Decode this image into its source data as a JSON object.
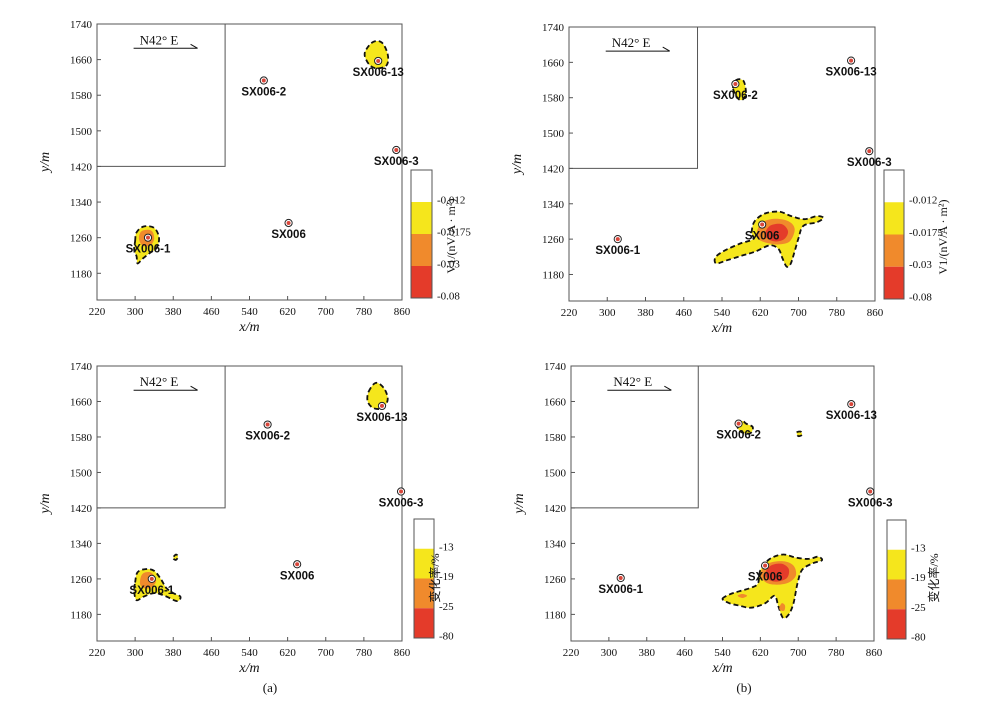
{
  "colors": {
    "level_1": "#ffffff",
    "level_2": "#f5e61c",
    "level_3": "#f08a2c",
    "level_4": "#e43b2a",
    "frame": "#555555",
    "outline": "#111111"
  },
  "chart_data": [
    {
      "id": "a-top",
      "type": "contour",
      "xlabel": "x/m",
      "ylabel": "y/m",
      "xlim": [
        220,
        860
      ],
      "ylim": [
        1120,
        1740
      ],
      "xticks": [
        "220",
        "300",
        "380",
        "460",
        "540",
        "620",
        "700",
        "780",
        "860"
      ],
      "yticks": [
        "1180",
        "1260",
        "1340",
        "1420",
        "1500",
        "1580",
        "1660",
        "1740"
      ],
      "direction": "N42° E",
      "colorbar": {
        "title": "V1/(nV/A · m²)",
        "labels": [
          "-0.012",
          "-0.0175",
          "-0.03",
          "-0.08"
        ]
      },
      "wells": [
        {
          "name": "SX006-2",
          "x": 570,
          "y": 1613
        },
        {
          "name": "SX006-13",
          "x": 810,
          "y": 1657
        },
        {
          "name": "SX006-3",
          "x": 848,
          "y": 1457
        },
        {
          "name": "SX006",
          "x": 622,
          "y": 1293
        },
        {
          "name": "SX006-1",
          "x": 327,
          "y": 1260
        }
      ],
      "anomalies": [
        {
          "level": 2,
          "points": [
            [
              785,
              1683
            ],
            [
              800,
              1700
            ],
            [
              818,
              1698
            ],
            [
              830,
              1672
            ],
            [
              828,
              1648
            ],
            [
              808,
              1640
            ],
            [
              792,
              1648
            ],
            [
              782,
              1668
            ]
          ]
        },
        {
          "level": 2,
          "points": [
            [
              300,
              1252
            ],
            [
              303,
              1272
            ],
            [
              318,
              1285
            ],
            [
              340,
              1282
            ],
            [
              350,
              1260
            ],
            [
              345,
              1237
            ],
            [
              330,
              1225
            ],
            [
              315,
              1212
            ],
            [
              305,
              1202
            ],
            [
              303,
              1218
            ],
            [
              298,
              1232
            ]
          ]
        },
        {
          "level": 3,
          "points": [
            [
              308,
              1258
            ],
            [
              314,
              1275
            ],
            [
              334,
              1276
            ],
            [
              340,
              1258
            ],
            [
              332,
              1243
            ],
            [
              316,
              1242
            ]
          ]
        }
      ]
    },
    {
      "id": "b-top",
      "type": "contour",
      "xlabel": "x/m",
      "ylabel": "y/m",
      "xlim": [
        220,
        860
      ],
      "ylim": [
        1120,
        1740
      ],
      "xticks": [
        "220",
        "300",
        "380",
        "460",
        "540",
        "620",
        "700",
        "780",
        "860"
      ],
      "yticks": [
        "1180",
        "1260",
        "1340",
        "1420",
        "1500",
        "1580",
        "1660",
        "1740"
      ],
      "direction": "N42° E",
      "colorbar": {
        "title": "V1/(nV/A · m²)",
        "labels": [
          "-0.012",
          "-0.0175",
          "-0.03",
          "-0.08"
        ]
      },
      "wells": [
        {
          "name": "SX006-2",
          "x": 568,
          "y": 1611
        },
        {
          "name": "SX006-13",
          "x": 810,
          "y": 1664
        },
        {
          "name": "SX006-3",
          "x": 848,
          "y": 1459
        },
        {
          "name": "SX006",
          "x": 624,
          "y": 1293
        },
        {
          "name": "SX006-1",
          "x": 322,
          "y": 1260
        }
      ],
      "anomalies": [
        {
          "level": 2,
          "points": [
            [
              563,
              1602
            ],
            [
              570,
              1620
            ],
            [
              585,
              1618
            ],
            [
              590,
              1590
            ],
            [
              582,
              1575
            ],
            [
              572,
              1580
            ]
          ]
        },
        {
          "level": 2,
          "points": [
            [
              602,
              1275
            ],
            [
              608,
              1300
            ],
            [
              630,
              1318
            ],
            [
              660,
              1322
            ],
            [
              685,
              1312
            ],
            [
              712,
              1305
            ],
            [
              738,
              1312
            ],
            [
              752,
              1308
            ],
            [
              738,
              1298
            ],
            [
              710,
              1290
            ],
            [
              700,
              1262
            ],
            [
              690,
              1225
            ],
            [
              683,
              1203
            ],
            [
              675,
              1198
            ],
            [
              666,
              1218
            ],
            [
              658,
              1238
            ],
            [
              640,
              1246
            ],
            [
              610,
              1232
            ],
            [
              580,
              1222
            ],
            [
              550,
              1212
            ],
            [
              528,
              1205
            ],
            [
              526,
              1218
            ],
            [
              542,
              1232
            ],
            [
              578,
              1250
            ],
            [
              605,
              1260
            ]
          ]
        },
        {
          "level": 3,
          "points": [
            [
              612,
              1270
            ],
            [
              622,
              1296
            ],
            [
              650,
              1306
            ],
            [
              680,
              1300
            ],
            [
              692,
              1282
            ],
            [
              682,
              1255
            ],
            [
              660,
              1248
            ],
            [
              640,
              1250
            ],
            [
              620,
              1257
            ]
          ]
        },
        {
          "level": 4,
          "points": [
            [
              630,
              1268
            ],
            [
              640,
              1290
            ],
            [
              665,
              1294
            ],
            [
              678,
              1278
            ],
            [
              670,
              1260
            ],
            [
              648,
              1255
            ]
          ]
        }
      ]
    },
    {
      "id": "a-bottom",
      "type": "contour",
      "xlabel": "x/m",
      "ylabel": "y/m",
      "xlim": [
        220,
        860
      ],
      "ylim": [
        1120,
        1740
      ],
      "xticks": [
        "220",
        "300",
        "380",
        "460",
        "540",
        "620",
        "700",
        "780",
        "860"
      ],
      "yticks": [
        "1180",
        "1260",
        "1340",
        "1420",
        "1500",
        "1580",
        "1660",
        "1740"
      ],
      "direction": "N42° E",
      "colorbar": {
        "title": "变化率/%",
        "labels": [
          "-13",
          "-19",
          "-25",
          "-80"
        ]
      },
      "wells": [
        {
          "name": "SX006-2",
          "x": 578,
          "y": 1608
        },
        {
          "name": "SX006-13",
          "x": 818,
          "y": 1650
        },
        {
          "name": "SX006-3",
          "x": 858,
          "y": 1457
        },
        {
          "name": "SX006",
          "x": 640,
          "y": 1293
        },
        {
          "name": "SX006-1",
          "x": 335,
          "y": 1260
        }
      ],
      "anomalies": [
        {
          "level": 2,
          "points": [
            [
              790,
              1682
            ],
            [
              805,
              1702
            ],
            [
              822,
              1690
            ],
            [
              830,
              1665
            ],
            [
              820,
              1645
            ],
            [
              800,
              1645
            ],
            [
              788,
              1660
            ]
          ]
        },
        {
          "level": 2,
          "points": [
            [
              300,
              1252
            ],
            [
              305,
              1275
            ],
            [
              322,
              1282
            ],
            [
              340,
              1278
            ],
            [
              355,
              1258
            ],
            [
              365,
              1240
            ],
            [
              380,
              1228
            ],
            [
              395,
              1220
            ],
            [
              388,
              1210
            ],
            [
              362,
              1222
            ],
            [
              340,
              1228
            ],
            [
              318,
              1220
            ],
            [
              303,
              1212
            ],
            [
              298,
              1232
            ]
          ]
        },
        {
          "level": 3,
          "points": [
            [
              310,
              1252
            ],
            [
              316,
              1272
            ],
            [
              334,
              1274
            ],
            [
              344,
              1255
            ],
            [
              332,
              1240
            ],
            [
              316,
              1240
            ]
          ]
        },
        {
          "level": 2,
          "points": [
            [
              381,
              1310
            ],
            [
              386,
              1315
            ],
            [
              390,
              1310
            ],
            [
              386,
              1303
            ],
            [
              381,
              1305
            ]
          ]
        }
      ]
    },
    {
      "id": "b-bottom",
      "type": "contour",
      "xlabel": "x/m",
      "ylabel": "y/m",
      "xlim": [
        220,
        860
      ],
      "ylim": [
        1120,
        1740
      ],
      "xticks": [
        "220",
        "300",
        "380",
        "460",
        "540",
        "620",
        "700",
        "780",
        "860"
      ],
      "yticks": [
        "1180",
        "1260",
        "1340",
        "1420",
        "1500",
        "1580",
        "1660",
        "1740"
      ],
      "direction": "N42° E",
      "colorbar": {
        "title": "变化率/%",
        "labels": [
          "-13",
          "-19",
          "-25",
          "-80"
        ]
      },
      "wells": [
        {
          "name": "SX006-2",
          "x": 574,
          "y": 1610
        },
        {
          "name": "SX006-13",
          "x": 812,
          "y": 1654
        },
        {
          "name": "SX006-3",
          "x": 852,
          "y": 1457
        },
        {
          "name": "SX006",
          "x": 630,
          "y": 1290
        },
        {
          "name": "SX006-1",
          "x": 325,
          "y": 1262
        }
      ],
      "anomalies": [
        {
          "level": 2,
          "points": [
            [
              570,
              1610
            ],
            [
              578,
              1592
            ],
            [
              598,
              1588
            ],
            [
              604,
              1602
            ],
            [
              590,
              1610
            ],
            [
              582,
              1616
            ]
          ]
        },
        {
          "level": 2,
          "points": [
            [
              697,
              1590
            ],
            [
              705,
              1592
            ],
            [
              708,
              1585
            ],
            [
              700,
              1582
            ]
          ]
        },
        {
          "level": 2,
          "points": [
            [
              540,
              1215
            ],
            [
              555,
              1225
            ],
            [
              575,
              1232
            ],
            [
              600,
              1240
            ],
            [
              615,
              1250
            ],
            [
              620,
              1280
            ],
            [
              640,
              1305
            ],
            [
              668,
              1315
            ],
            [
              695,
              1308
            ],
            [
              722,
              1305
            ],
            [
              742,
              1310
            ],
            [
              750,
              1302
            ],
            [
              730,
              1295
            ],
            [
              708,
              1280
            ],
            [
              698,
              1248
            ],
            [
              690,
              1205
            ],
            [
              680,
              1180
            ],
            [
              668,
              1172
            ],
            [
              658,
              1198
            ],
            [
              650,
              1222
            ],
            [
              630,
              1205
            ],
            [
              600,
              1195
            ],
            [
              575,
              1200
            ],
            [
              555,
              1205
            ]
          ]
        },
        {
          "level": 3,
          "points": [
            [
              620,
              1270
            ],
            [
              635,
              1294
            ],
            [
              668,
              1300
            ],
            [
              690,
              1290
            ],
            [
              695,
              1268
            ],
            [
              680,
              1252
            ],
            [
              655,
              1247
            ],
            [
              632,
              1252
            ]
          ]
        },
        {
          "level": 4,
          "points": [
            [
              630,
              1272
            ],
            [
              642,
              1290
            ],
            [
              665,
              1294
            ],
            [
              680,
              1282
            ],
            [
              676,
              1262
            ],
            [
              655,
              1254
            ],
            [
              638,
              1258
            ]
          ]
        },
        {
          "level": 3,
          "points": [
            [
              660,
              1192
            ],
            [
              665,
              1205
            ],
            [
              672,
              1200
            ],
            [
              670,
              1188
            ]
          ]
        },
        {
          "level": 3,
          "points": [
            [
              572,
              1222
            ],
            [
              582,
              1226
            ],
            [
              592,
              1222
            ],
            [
              582,
              1217
            ]
          ]
        }
      ]
    }
  ],
  "captions": {
    "left": "(a)",
    "right": "(b)"
  }
}
